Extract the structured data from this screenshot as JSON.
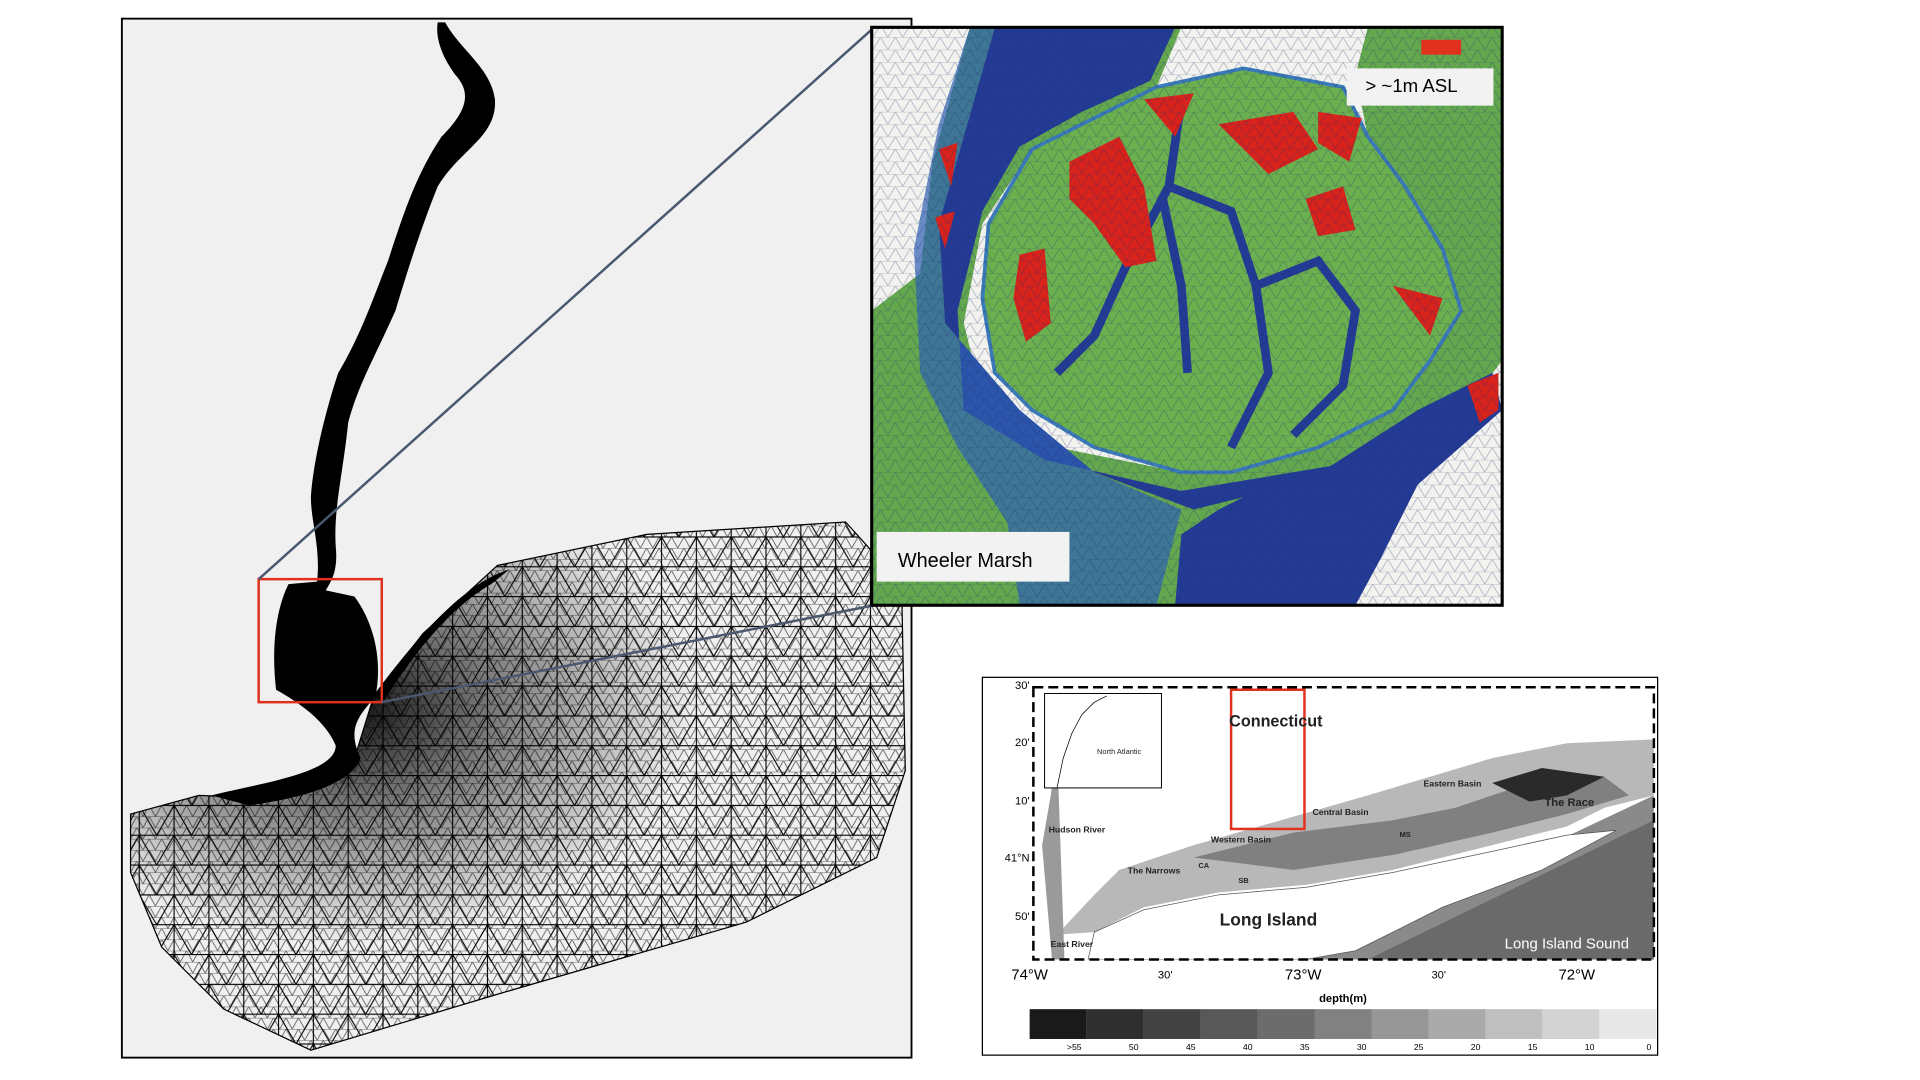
{
  "zoom_inset": {
    "legend_label": "> ~1m ASL",
    "site_label": "Wheeler Marsh"
  },
  "regional_map": {
    "place_labels": [
      "Connecticut",
      "North Atlantic",
      "Hudson River",
      "Western Basin",
      "Central Basin",
      "Eastern Basin",
      "The Race",
      "MS",
      "The Narrows",
      "CA",
      "SB",
      "Long Island",
      "East River",
      "Long Island Sound"
    ],
    "lat_labels": [
      "30'",
      "20'",
      "10'",
      "41°N",
      "50'"
    ],
    "lon_labels": [
      "74°W",
      "30'",
      "73°W",
      "30'",
      "72°W"
    ],
    "depth_axis_title": "depth(m)",
    "depth_scale_labels": [
      ">55",
      "50",
      "45",
      "40",
      "35",
      "30",
      "25",
      "20",
      "15",
      "10",
      "0"
    ]
  }
}
